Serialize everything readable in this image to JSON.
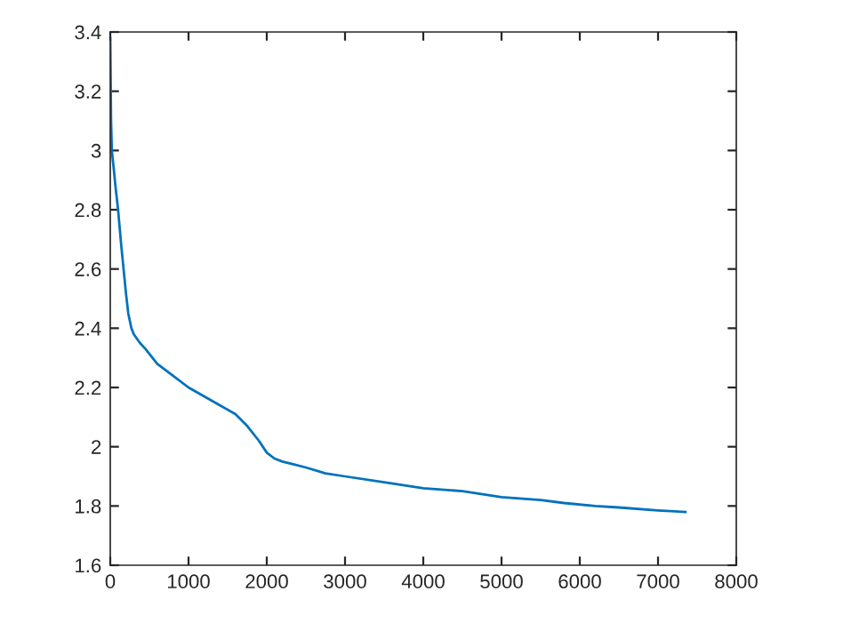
{
  "chart_data": {
    "type": "line",
    "series": [
      {
        "color": "#0072bd",
        "x": [
          0,
          10,
          20,
          40,
          70,
          100,
          140,
          170,
          200,
          230,
          270,
          300,
          380,
          450,
          600,
          800,
          1000,
          1200,
          1400,
          1600,
          1750,
          1900,
          2000,
          2100,
          2200,
          2350,
          2500,
          2750,
          3000,
          3500,
          4000,
          4500,
          5000,
          5500,
          5800,
          6200,
          6500,
          7000,
          7350
        ],
        "values": [
          3.38,
          3.1,
          3.0,
          2.95,
          2.87,
          2.8,
          2.68,
          2.6,
          2.52,
          2.45,
          2.4,
          2.38,
          2.35,
          2.33,
          2.28,
          2.24,
          2.2,
          2.17,
          2.14,
          2.11,
          2.07,
          2.02,
          1.98,
          1.96,
          1.95,
          1.94,
          1.93,
          1.91,
          1.9,
          1.88,
          1.86,
          1.85,
          1.83,
          1.82,
          1.81,
          1.8,
          1.795,
          1.785,
          1.78
        ]
      }
    ],
    "xlim": [
      0,
      8000
    ],
    "xticks": [
      0,
      1000,
      2000,
      3000,
      4000,
      5000,
      6000,
      7000,
      8000
    ],
    "ylim": [
      1.6,
      3.4
    ],
    "yticks": [
      1.6,
      1.8,
      2,
      2.2,
      2.4,
      2.6,
      2.8,
      3,
      3.2,
      3.4
    ],
    "grid": false,
    "marker": "none",
    "line_style": "solid"
  }
}
